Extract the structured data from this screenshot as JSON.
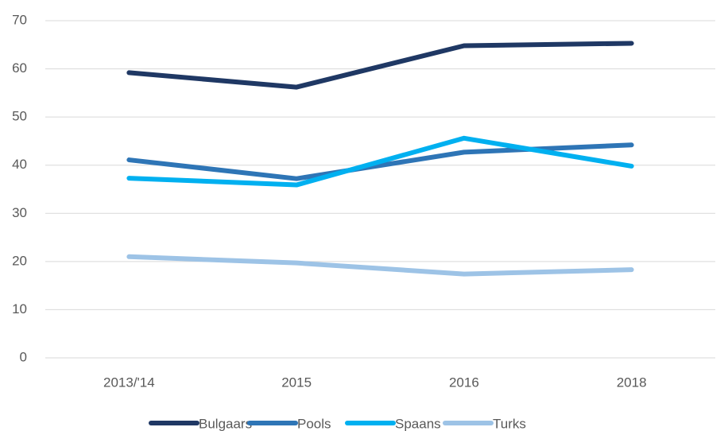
{
  "chart_data": {
    "type": "line",
    "categories": [
      "2013/'14",
      "2015",
      "2016",
      "2018"
    ],
    "series": [
      {
        "name": "Bulgaars",
        "color": "#1f3864",
        "values": [
          59.2,
          56.2,
          64.8,
          65.3
        ]
      },
      {
        "name": "Pools",
        "color": "#2e75b6",
        "values": [
          41.1,
          37.2,
          42.7,
          44.2
        ]
      },
      {
        "name": "Spaans",
        "color": "#00b0f0",
        "values": [
          37.3,
          35.9,
          45.6,
          39.8
        ]
      },
      {
        "name": "Turks",
        "color": "#9dc3e6",
        "values": [
          21.0,
          19.7,
          17.4,
          18.3
        ]
      }
    ],
    "ylim": [
      0,
      70
    ],
    "yticks": [
      0,
      10,
      20,
      30,
      40,
      50,
      60,
      70
    ],
    "grid": true,
    "legend": "bottom"
  }
}
